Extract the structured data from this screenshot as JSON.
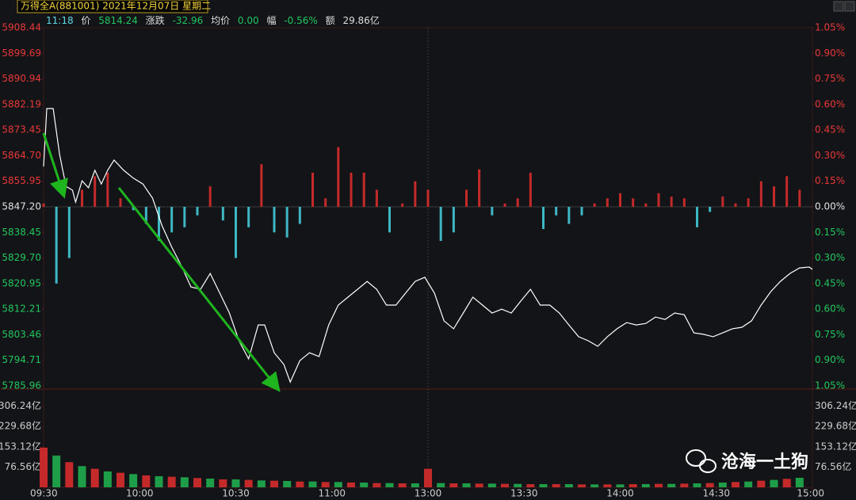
{
  "header": {
    "title": "万得全A(881001) 2021年12月07日 星期二",
    "time": "11:18",
    "price_label": "价",
    "price": "5814.24",
    "change_label": "涨跌",
    "change": "-32.96",
    "avg_label": "均价",
    "avg": "0.00",
    "pct_label": "幅",
    "pct": "-0.56%",
    "amount_label": "额",
    "amount": "29.86亿"
  },
  "watermark": "沧海一土狗",
  "chart_data": {
    "type": "line",
    "xlim": [
      0,
      240
    ],
    "xticks": [
      {
        "value": 0,
        "label": "09:30"
      },
      {
        "value": 30,
        "label": "10:00"
      },
      {
        "value": 60,
        "label": "10:30"
      },
      {
        "value": 90,
        "label": "11:00"
      },
      {
        "value": 120,
        "label": "13:00"
      },
      {
        "value": 150,
        "label": "13:30"
      },
      {
        "value": 180,
        "label": "14:00"
      },
      {
        "value": 210,
        "label": "14:30"
      },
      {
        "value": 240,
        "label": "15:00"
      }
    ],
    "ylim": [
      5785.96,
      5908.44
    ],
    "yticks": [
      5908.44,
      5899.69,
      5890.94,
      5882.19,
      5873.45,
      {
        "value": 5864.7,
        "label": "5864.70"
      },
      5855.95,
      {
        "value": 5847.2,
        "label": "5847.20"
      },
      5838.45,
      {
        "value": 5829.7,
        "label": "5829.70"
      },
      5820.95,
      5812.21,
      5803.46,
      5794.71,
      5785.96
    ],
    "y2lim": [
      -1.05,
      1.05
    ],
    "y2ticks": [
      {
        "value": 1.05,
        "label": "1.05%"
      },
      {
        "value": 0.9,
        "label": "0.90%"
      },
      {
        "value": 0.75,
        "label": "0.75%"
      },
      {
        "value": 0.6,
        "label": "0.60%"
      },
      {
        "value": 0.45,
        "label": "0.45%"
      },
      {
        "value": 0.3,
        "label": "0.30%"
      },
      {
        "value": 0.15,
        "label": "0.15%"
      },
      {
        "value": 0,
        "label": "0.00%"
      },
      {
        "value": -0.15,
        "label": "0.15%"
      },
      {
        "value": -0.3,
        "label": "0.30%"
      },
      {
        "value": -0.45,
        "label": "0.45%"
      },
      {
        "value": -0.6,
        "label": "0.60%"
      },
      {
        "value": -0.75,
        "label": "0.75%"
      },
      {
        "value": -0.9,
        "label": "0.90%"
      },
      {
        "value": -1.05,
        "label": "1.05%"
      }
    ],
    "up_color": "#e83838",
    "down_color": "#22c55e",
    "neutral_color": "#e0e0e0",
    "series": [
      {
        "color": "#ffffff",
        "x": [
          0,
          1,
          3,
          5,
          7,
          9,
          10,
          12,
          14,
          16,
          18,
          20,
          22,
          25,
          28,
          31,
          34,
          37,
          40,
          43,
          46,
          49,
          52,
          55,
          58,
          61,
          64,
          67,
          69,
          72,
          75,
          77,
          80,
          83,
          86,
          89,
          92,
          95,
          98,
          101,
          104,
          107,
          110,
          113,
          116,
          119,
          122,
          125,
          128,
          131,
          134,
          137,
          140,
          143,
          146,
          149,
          152,
          155,
          158,
          161,
          164,
          167,
          170,
          173,
          176,
          179,
          182,
          185,
          188,
          191,
          194,
          197,
          200,
          203,
          206,
          209,
          212,
          215,
          218,
          221,
          224,
          227,
          230,
          233,
          236,
          239,
          240
        ],
        "values": [
          5861.0,
          5880.8,
          5880.8,
          5865.1,
          5854.2,
          5852.9,
          5848.8,
          5856.1,
          5853.7,
          5859.7,
          5855.0,
          5859.7,
          5863.2,
          5859.7,
          5857.0,
          5855.0,
          5850.2,
          5840.7,
          5833.4,
          5827.1,
          5819.8,
          5819.0,
          5824.4,
          5817.7,
          5810.9,
          5801.4,
          5795.2,
          5806.8,
          5806.8,
          5797.3,
          5793.3,
          5787.3,
          5794.6,
          5797.3,
          5796.0,
          5806.8,
          5813.6,
          5816.3,
          5819.0,
          5821.7,
          5819.0,
          5813.6,
          5813.6,
          5817.7,
          5821.7,
          5823.1,
          5817.7,
          5808.2,
          5805.5,
          5810.9,
          5816.3,
          5813.6,
          5810.9,
          5812.2,
          5810.9,
          5815.0,
          5819.0,
          5813.6,
          5813.6,
          5810.9,
          5806.8,
          5802.8,
          5801.4,
          5799.5,
          5802.8,
          5805.5,
          5807.6,
          5806.8,
          5807.3,
          5809.5,
          5808.7,
          5810.9,
          5810.3,
          5804.1,
          5803.6,
          5802.8,
          5804.1,
          5805.5,
          5806.0,
          5808.2,
          5813.6,
          5818.2,
          5821.7,
          5824.4,
          5826.3,
          5826.6,
          5825.8
        ]
      }
    ],
    "breadth": {
      "up_color": "#c42a2a",
      "down_color": "#3fb6c4",
      "x": [
        0,
        4,
        8,
        12,
        16,
        20,
        24,
        28,
        32,
        36,
        40,
        44,
        48,
        52,
        56,
        60,
        64,
        68,
        72,
        76,
        80,
        84,
        88,
        92,
        96,
        100,
        104,
        108,
        112,
        116,
        120,
        124,
        128,
        132,
        136,
        140,
        144,
        148,
        152,
        156,
        160,
        164,
        168,
        172,
        176,
        180,
        184,
        188,
        192,
        196,
        200,
        204,
        208,
        212,
        216,
        220,
        224,
        228,
        232,
        236
      ],
      "values": [
        0.02,
        -0.45,
        -0.3,
        0.1,
        0.18,
        0.2,
        0.05,
        -0.02,
        -0.1,
        -0.2,
        -0.15,
        -0.12,
        -0.05,
        0.12,
        -0.08,
        -0.3,
        -0.12,
        0.25,
        -0.15,
        -0.18,
        -0.1,
        0.2,
        0.05,
        0.35,
        0.2,
        0.2,
        0.1,
        -0.15,
        0.02,
        0.15,
        0.1,
        -0.2,
        -0.15,
        0.1,
        0.22,
        -0.05,
        0.02,
        0.05,
        0.2,
        -0.13,
        -0.05,
        -0.1,
        -0.05,
        0.02,
        0.05,
        0.08,
        0.05,
        0.02,
        0.08,
        0.06,
        0.05,
        -0.12,
        -0.03,
        0.06,
        0.02,
        0.05,
        0.15,
        0.12,
        0.18,
        0.1
      ]
    },
    "volume": {
      "colors": [
        "#c42a2a",
        "#1f9e4a"
      ],
      "ylim": [
        0,
        371
      ],
      "yticks": [
        {
          "value": 306.24,
          "label": "306.24亿"
        },
        {
          "value": 229.68,
          "label": "229.68亿"
        },
        {
          "value": 153.12,
          "label": "153.12亿"
        },
        {
          "value": 76.56,
          "label": "76.56亿"
        }
      ],
      "x": [
        0,
        4,
        8,
        12,
        16,
        20,
        24,
        28,
        32,
        36,
        40,
        44,
        48,
        52,
        56,
        60,
        64,
        68,
        72,
        76,
        80,
        84,
        88,
        92,
        96,
        100,
        104,
        108,
        112,
        116,
        120,
        124,
        128,
        132,
        136,
        140,
        144,
        148,
        152,
        156,
        160,
        164,
        168,
        172,
        176,
        180,
        184,
        188,
        192,
        196,
        200,
        204,
        208,
        212,
        216,
        220,
        224,
        228,
        232,
        236
      ],
      "values": [
        150,
        120,
        95,
        80,
        70,
        60,
        55,
        50,
        45,
        42,
        40,
        38,
        35,
        33,
        30,
        30,
        28,
        26,
        25,
        24,
        22,
        22,
        20,
        20,
        18,
        18,
        16,
        16,
        15,
        15,
        70,
        16,
        15,
        15,
        14,
        14,
        13,
        13,
        12,
        12,
        12,
        12,
        11,
        11,
        11,
        11,
        12,
        12,
        13,
        13,
        14,
        15,
        16,
        18,
        20,
        22,
        25,
        28,
        32,
        36
      ]
    }
  }
}
